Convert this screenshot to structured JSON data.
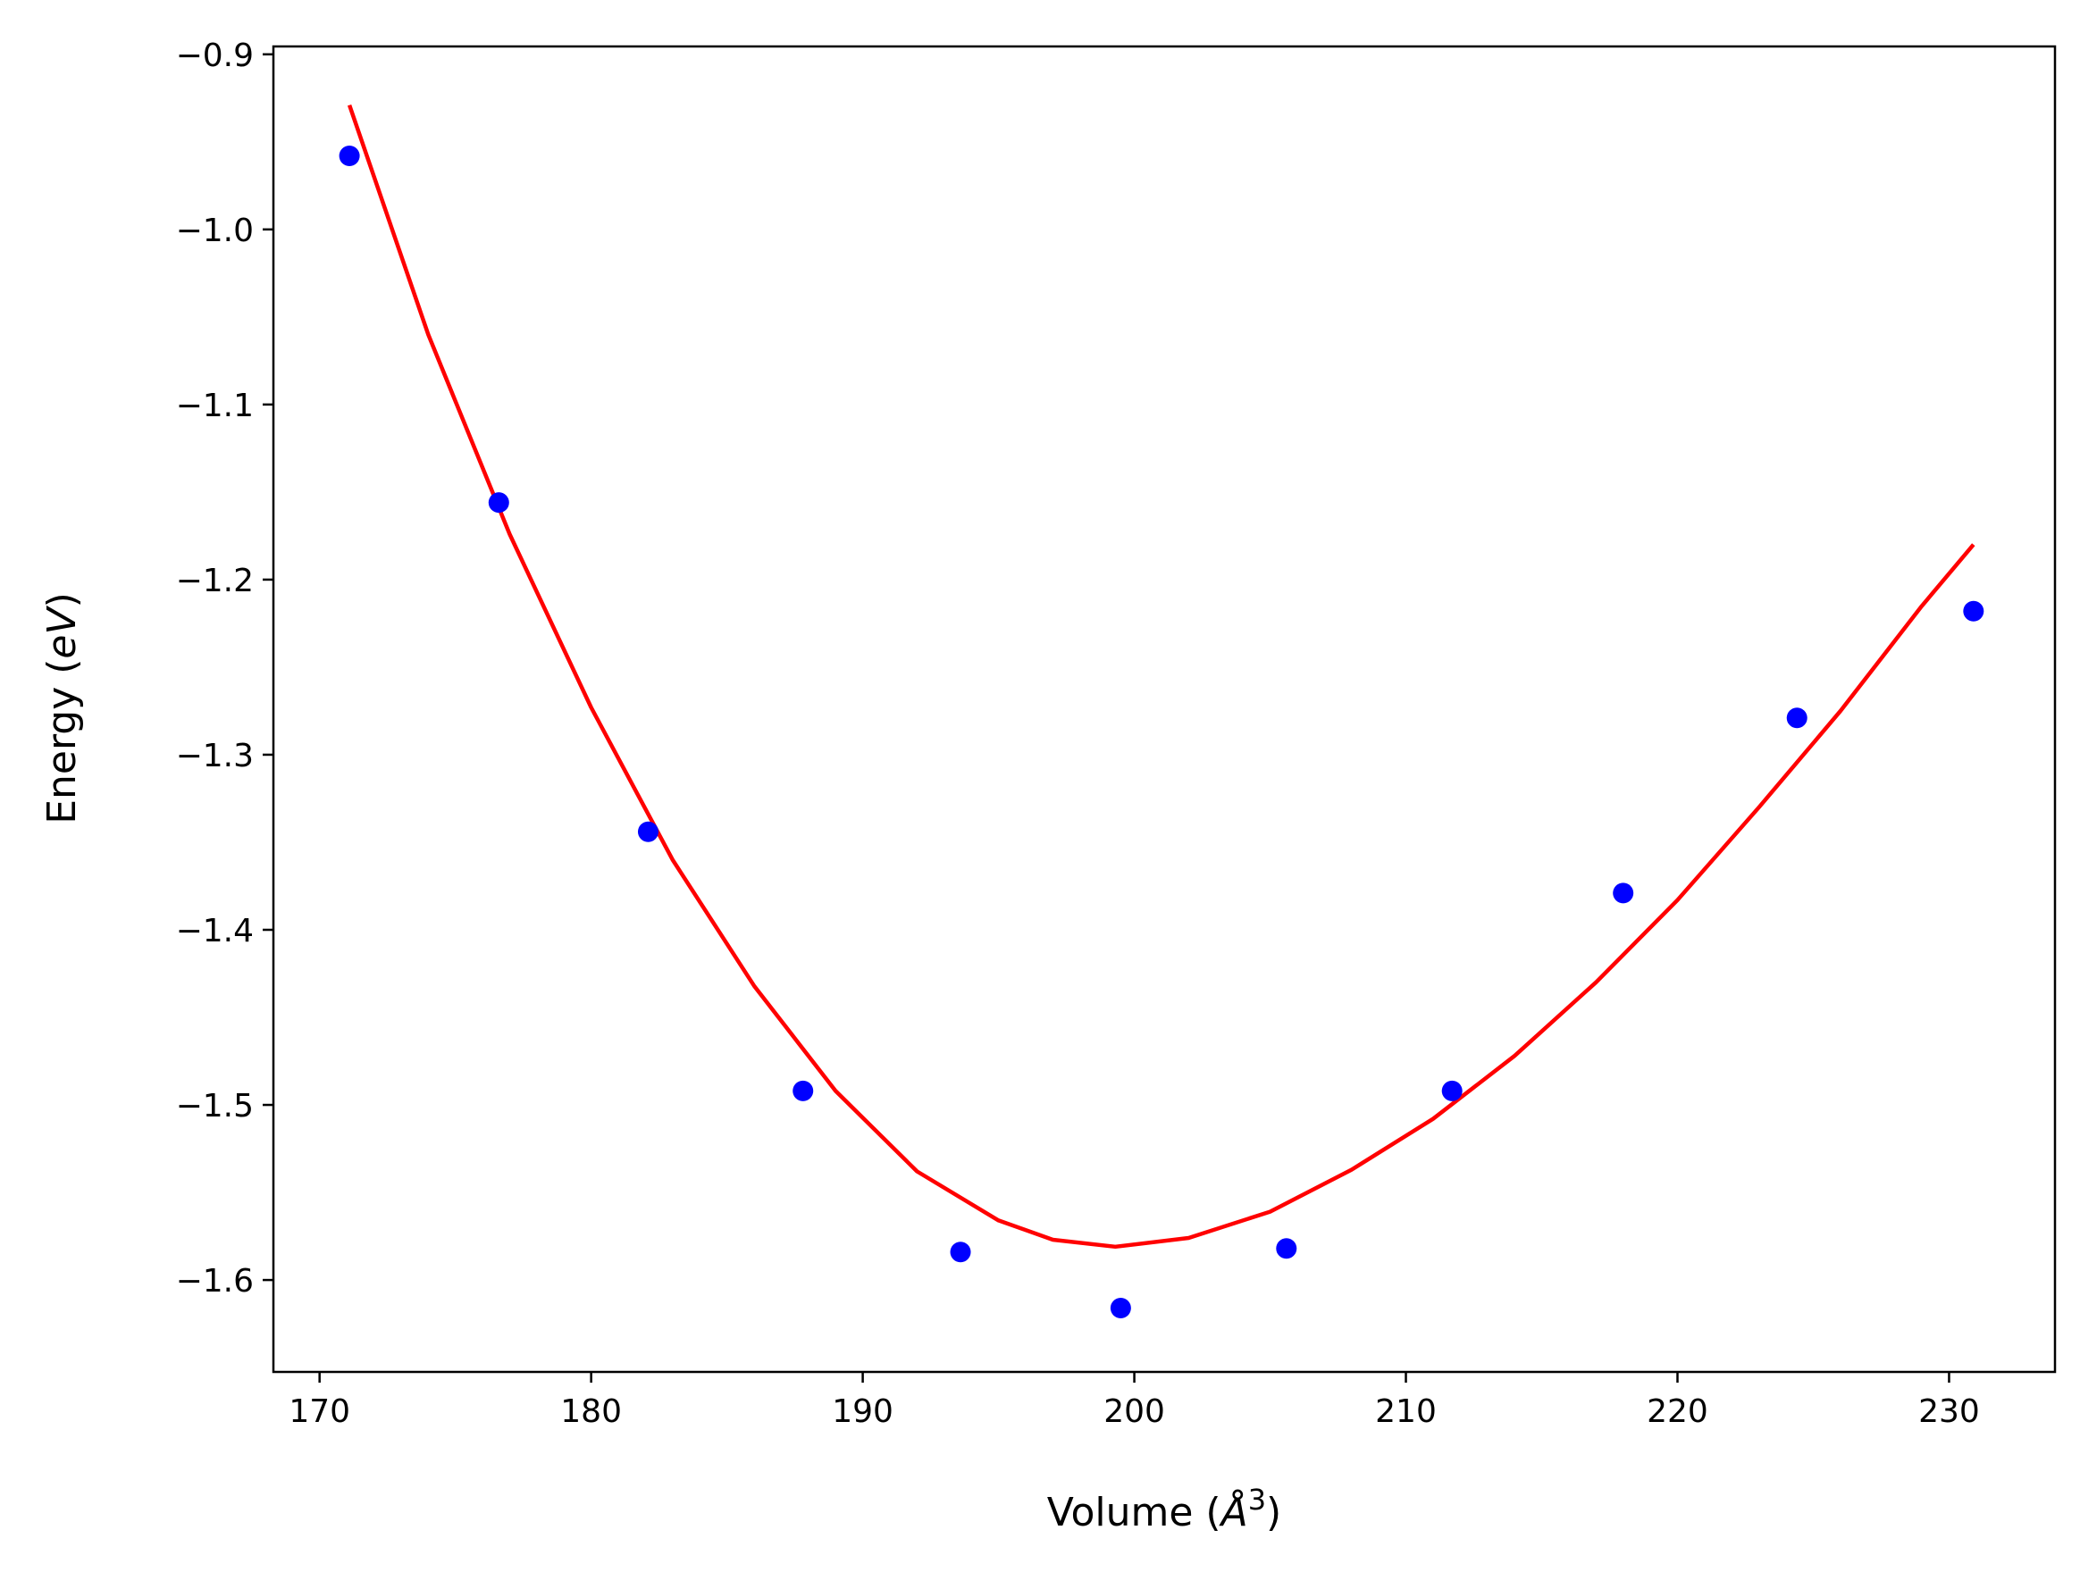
{
  "chart_data": {
    "type": "scatter",
    "xlabel": {
      "prefix": "Volume (",
      "unit": "Å",
      "exponent": "3",
      "suffix": ")"
    },
    "ylabel": {
      "prefix": "Energy (",
      "unit": "eV",
      "suffix": ")"
    },
    "xlim": [
      168.3,
      233.9
    ],
    "ylim": [
      -1.6525,
      -0.8955
    ],
    "xticks": [
      170,
      180,
      190,
      200,
      210,
      220,
      230
    ],
    "xtick_labels": [
      "170",
      "180",
      "190",
      "200",
      "210",
      "220",
      "230"
    ],
    "yticks": [
      -0.9,
      -1.0,
      -1.1,
      -1.2,
      -1.3,
      -1.4,
      -1.5,
      -1.6
    ],
    "ytick_labels": [
      "−0.9",
      "−1.0",
      "−1.1",
      "−1.2",
      "−1.3",
      "−1.4",
      "−1.5",
      "−1.6"
    ],
    "grid": false,
    "series": [
      {
        "kind": "points",
        "color": "#0000ff",
        "x": [
          171.1,
          176.6,
          182.1,
          187.8,
          193.6,
          199.5,
          205.6,
          211.7,
          218.0,
          224.4,
          230.9
        ],
        "y": [
          -0.958,
          -1.156,
          -1.344,
          -1.492,
          -1.584,
          -1.616,
          -1.582,
          -1.492,
          -1.379,
          -1.279,
          -1.218
        ]
      },
      {
        "kind": "fit-curve",
        "color": "#ff0000",
        "x": [
          171.1,
          174.0,
          177.0,
          180.0,
          183.0,
          186.0,
          189.0,
          192.0,
          195.0,
          197.0,
          199.3,
          202.0,
          205.0,
          208.0,
          211.0,
          214.0,
          217.0,
          220.0,
          223.0,
          226.0,
          229.0,
          230.9
        ],
        "y": [
          -0.929,
          -1.06,
          -1.174,
          -1.273,
          -1.36,
          -1.432,
          -1.492,
          -1.538,
          -1.566,
          -1.577,
          -1.581,
          -1.576,
          -1.561,
          -1.537,
          -1.508,
          -1.472,
          -1.43,
          -1.383,
          -1.33,
          -1.275,
          -1.215,
          -1.18
        ]
      }
    ]
  }
}
